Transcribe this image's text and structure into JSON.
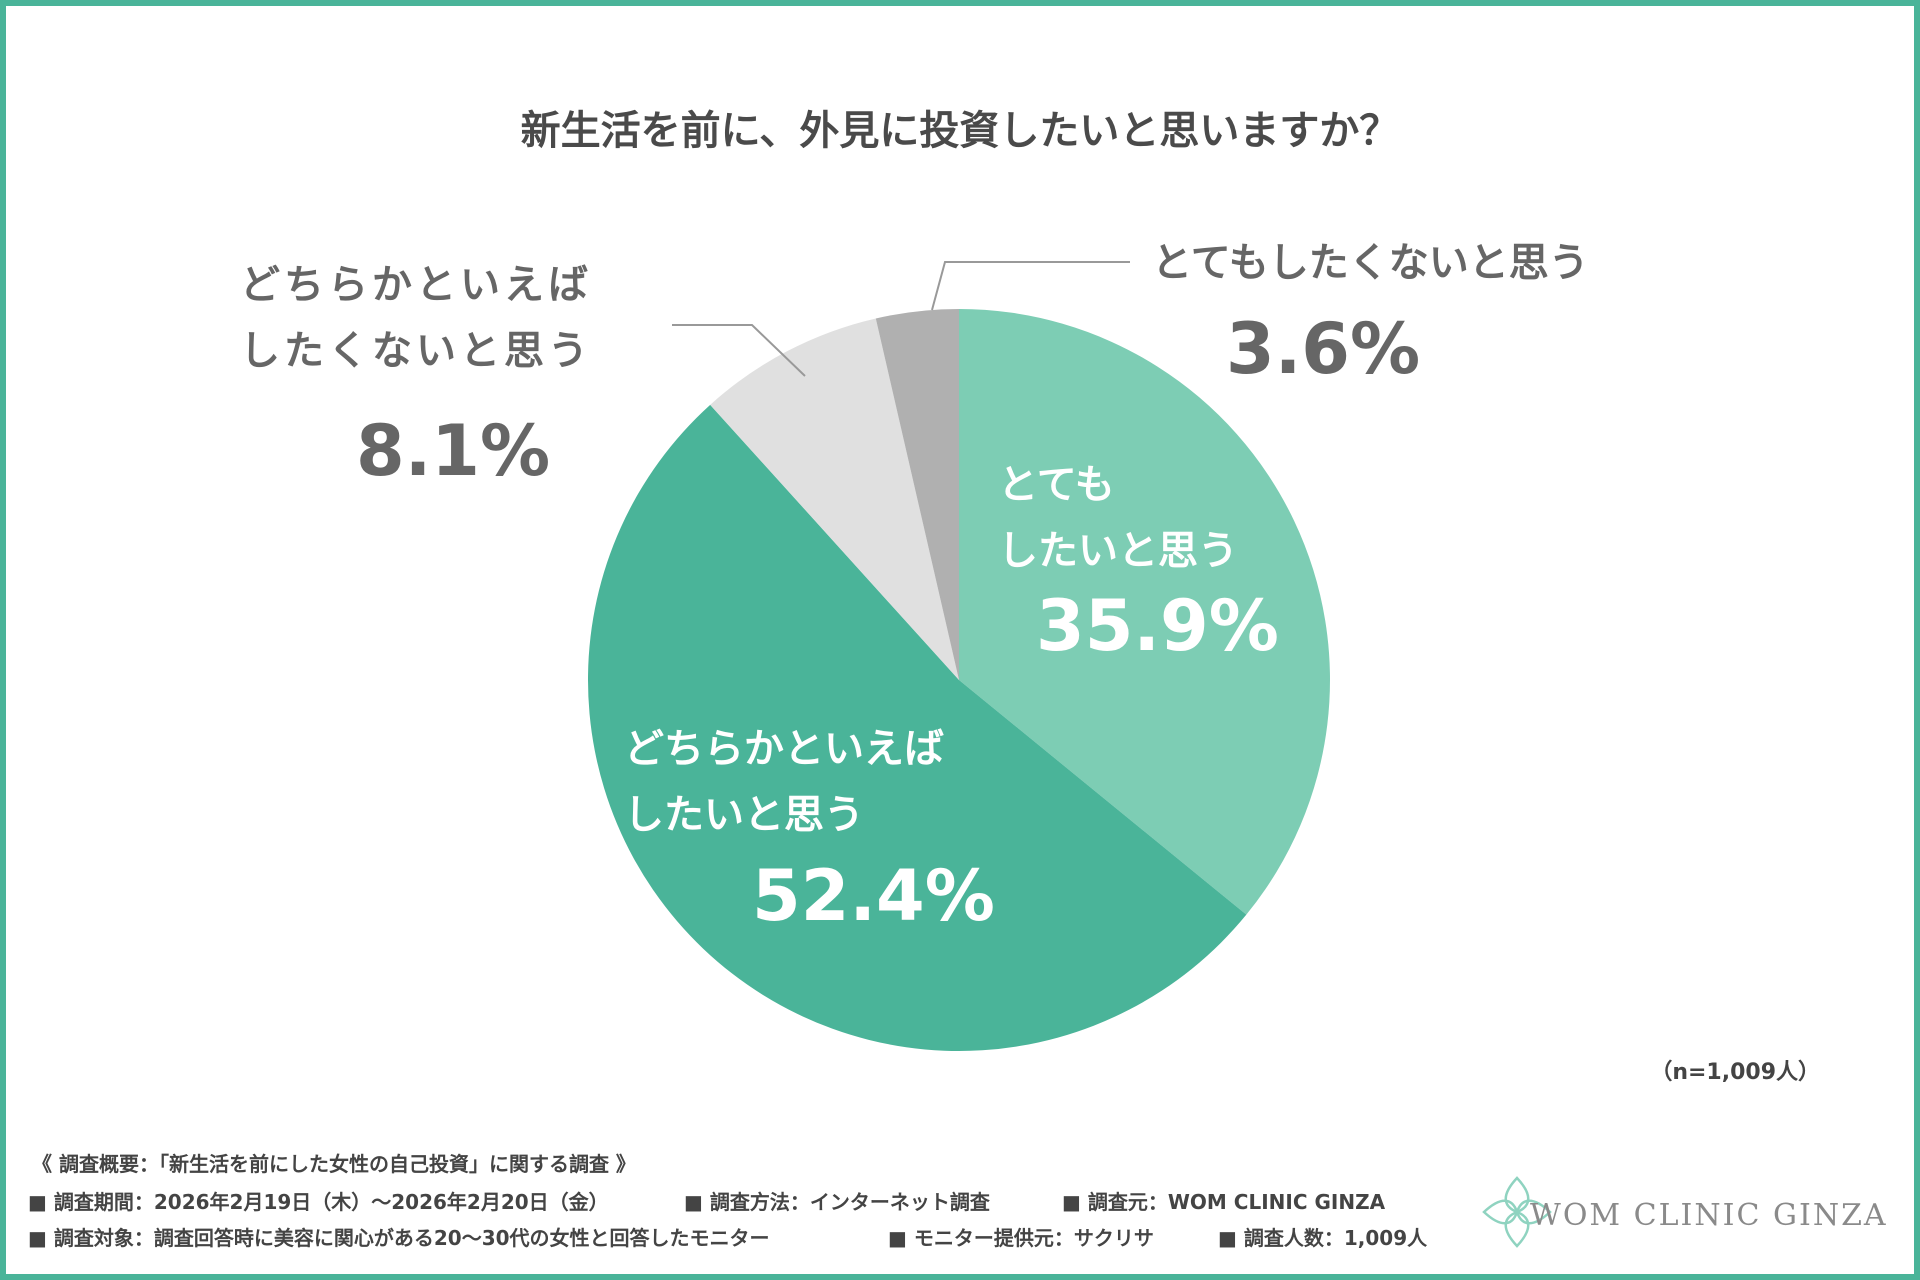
{
  "chart_data": {
    "type": "pie",
    "title": "新生活を前に、外見に投資したいと思いますか？",
    "slices": [
      {
        "label": "とても したいと思う",
        "value": 35.9,
        "display": "35.9%",
        "color": "#7dcdb4"
      },
      {
        "label": "どちらかといえば したいと思う",
        "value": 52.4,
        "display": "52.4%",
        "color": "#4ab499"
      },
      {
        "label": "どちらかといえば したくないと思う",
        "value": 8.1,
        "display": "8.1%",
        "color": "#e0e0e0"
      },
      {
        "label": "とてもしたくないと思う",
        "value": 3.6,
        "display": "3.6%",
        "color": "#b0b0b0"
      }
    ],
    "start": "top",
    "direction": "clockwise"
  },
  "labels": {
    "s0_line1": "とても",
    "s0_line2": "したいと思う",
    "s1_line1": "どちらかといえば",
    "s1_line2": "したいと思う",
    "s2_line1": "どちらかといえば",
    "s2_line2": "したくないと思う",
    "s3_line1": "とてもしたくないと思う"
  },
  "sample": "（n=1,009人）",
  "footer": {
    "heading": "《 調査概要：「新生活を前にした女性の自己投資」に関する調査 》",
    "items": [
      "■ 調査期間：2026年2月19日（木）～2026年2月20日（金）",
      "■ 調査方法：インターネット調査",
      "■ 調査元：WOM CLINIC GINZA",
      "■ 調査対象：調査回答時に美容に関心がある20～30代の女性と回答したモニター",
      "■ モニター提供元：サクリサ",
      "■ 調査人数：1,009人"
    ]
  },
  "logo": "WOM CLINIC GINZA",
  "colors": {
    "border": "#4ab499",
    "text": "#555555"
  }
}
